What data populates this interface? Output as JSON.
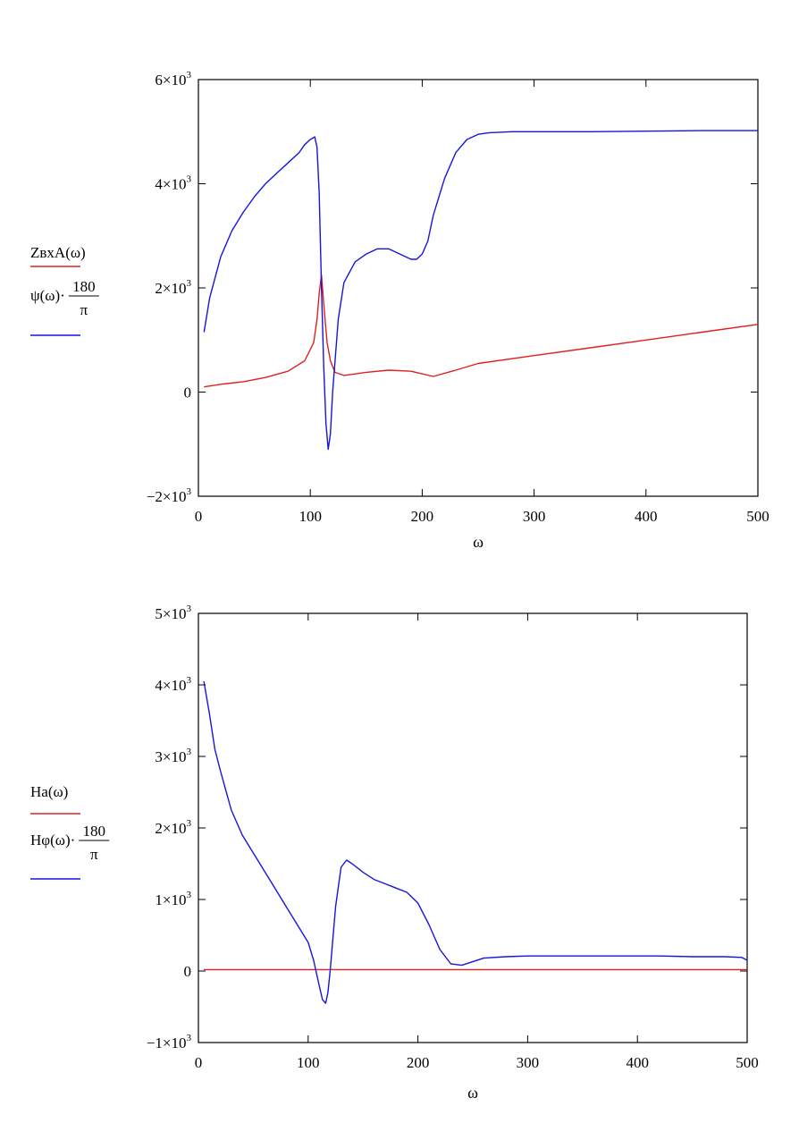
{
  "chart_data": [
    {
      "type": "line",
      "xlabel": "ω",
      "xlim": [
        0,
        500
      ],
      "ylim": [
        -2000,
        6000
      ],
      "x_ticks": [
        "0",
        "100",
        "200",
        "300",
        "400",
        "500"
      ],
      "y_ticks": [
        {
          "value": -2000,
          "mant": "−2×10",
          "exp": "3"
        },
        {
          "value": 0,
          "mant": "0",
          "exp": ""
        },
        {
          "value": 2000,
          "mant": "2×10",
          "exp": "3"
        },
        {
          "value": 4000,
          "mant": "4×10",
          "exp": "3"
        },
        {
          "value": 6000,
          "mant": "6×10",
          "exp": "3"
        }
      ],
      "legend_placement": "left",
      "series": [
        {
          "name": "ZвхA(ω)",
          "legend": {
            "base": "ZвхA(ω)"
          },
          "color": "#e02020",
          "x": [
            5,
            20,
            40,
            60,
            80,
            95,
            103,
            106,
            108,
            110,
            112,
            115,
            118,
            122,
            130,
            150,
            170,
            190,
            210,
            230,
            250,
            300,
            350,
            400,
            450,
            500
          ],
          "y": [
            100,
            150,
            200,
            280,
            400,
            600,
            950,
            1400,
            1900,
            2250,
            1700,
            950,
            600,
            380,
            320,
            380,
            420,
            400,
            300,
            420,
            550,
            700,
            850,
            1000,
            1150,
            1300
          ]
        },
        {
          "name": "ψ(ω)·180/π",
          "legend": {
            "base": "ψ(ω)·",
            "num": "180",
            "den": "π"
          },
          "color": "#1515e0",
          "x": [
            5,
            10,
            20,
            30,
            40,
            50,
            60,
            70,
            80,
            90,
            95,
            100,
            104,
            106,
            108,
            110,
            112,
            114,
            116,
            118,
            120,
            125,
            130,
            140,
            150,
            160,
            170,
            180,
            190,
            195,
            200,
            205,
            210,
            220,
            230,
            240,
            250,
            260,
            280,
            300,
            350,
            400,
            450,
            500
          ],
          "y": [
            1150,
            1800,
            2600,
            3100,
            3450,
            3750,
            4000,
            4200,
            4400,
            4600,
            4750,
            4850,
            4900,
            4700,
            3800,
            2000,
            500,
            -600,
            -1100,
            -800,
            0,
            1400,
            2100,
            2500,
            2650,
            2750,
            2750,
            2650,
            2550,
            2550,
            2650,
            2900,
            3400,
            4100,
            4600,
            4850,
            4950,
            4980,
            5000,
            5000,
            5000,
            5010,
            5020,
            5020
          ]
        }
      ]
    },
    {
      "type": "line",
      "xlabel": "ω",
      "xlim": [
        0,
        500
      ],
      "ylim": [
        -1000,
        5000
      ],
      "x_ticks": [
        "0",
        "100",
        "200",
        "300",
        "400",
        "500"
      ],
      "y_ticks": [
        {
          "value": -1000,
          "mant": "−1×10",
          "exp": "3"
        },
        {
          "value": 0,
          "mant": "0",
          "exp": ""
        },
        {
          "value": 1000,
          "mant": "1×10",
          "exp": "3"
        },
        {
          "value": 2000,
          "mant": "2×10",
          "exp": "3"
        },
        {
          "value": 3000,
          "mant": "3×10",
          "exp": "3"
        },
        {
          "value": 4000,
          "mant": "4×10",
          "exp": "3"
        },
        {
          "value": 5000,
          "mant": "5×10",
          "exp": "3"
        }
      ],
      "legend_placement": "left",
      "series": [
        {
          "name": "Ha(ω)",
          "legend": {
            "base": "Ha(ω)"
          },
          "color": "#e02020",
          "x": [
            5,
            100,
            200,
            300,
            400,
            500
          ],
          "y": [
            20,
            20,
            20,
            20,
            20,
            20
          ]
        },
        {
          "name": "Hφ(ω)·180/π",
          "legend": {
            "base": "Hφ(ω)·",
            "num": "180",
            "den": "π"
          },
          "color": "#1515e0",
          "x": [
            5,
            10,
            15,
            20,
            30,
            40,
            50,
            60,
            70,
            80,
            90,
            100,
            105,
            110,
            113,
            116,
            118,
            120,
            125,
            130,
            135,
            140,
            150,
            160,
            170,
            180,
            190,
            200,
            210,
            220,
            230,
            240,
            250,
            260,
            280,
            300,
            350,
            400,
            420,
            450,
            480,
            495,
            500
          ],
          "y": [
            4050,
            3600,
            3100,
            2800,
            2250,
            1900,
            1650,
            1400,
            1150,
            900,
            650,
            400,
            150,
            -200,
            -400,
            -450,
            -300,
            0,
            900,
            1450,
            1550,
            1500,
            1380,
            1280,
            1220,
            1160,
            1100,
            950,
            650,
            300,
            100,
            80,
            130,
            180,
            200,
            210,
            210,
            210,
            210,
            200,
            200,
            190,
            150
          ]
        }
      ]
    }
  ]
}
